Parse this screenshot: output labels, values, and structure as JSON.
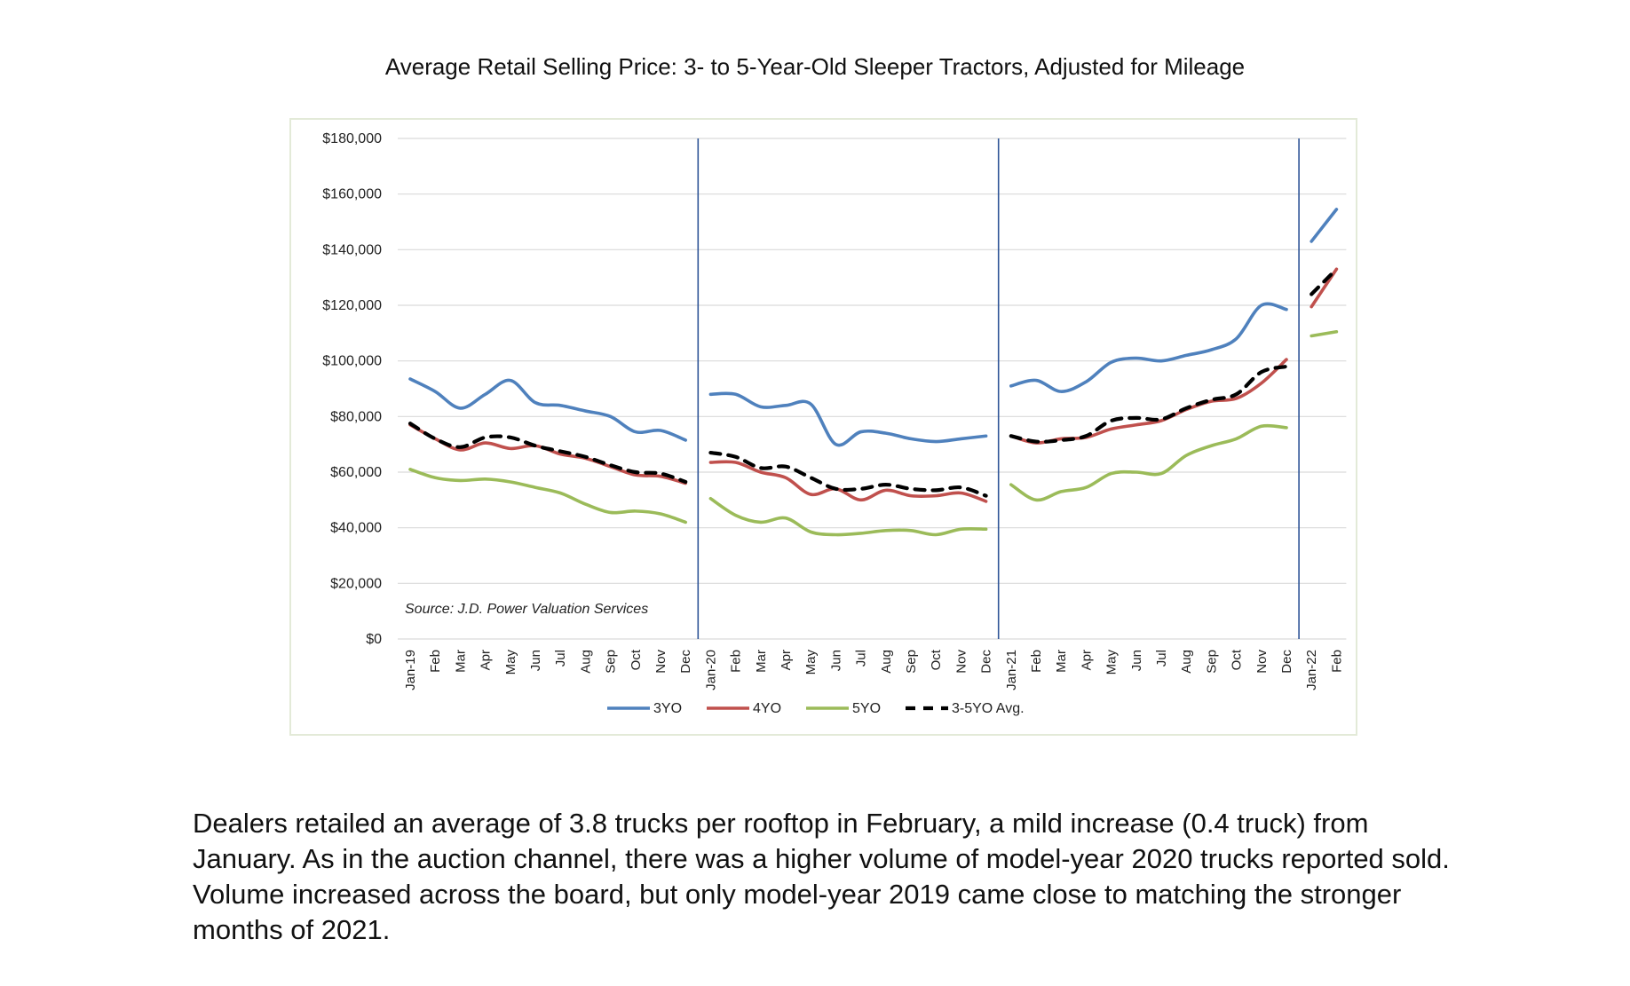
{
  "title": "Average Retail Selling Price: 3- to 5-Year-Old Sleeper Tractors, Adjusted for Mileage",
  "paragraph": "Dealers retailed an average of 3.8 trucks per rooftop in February, a mild increase (0.4 truck) from January. As in the auction channel, there was a higher volume of model-year 2020 trucks reported sold. Volume increased across the board, but only model-year 2019 came close to matching the stronger months of 2021.",
  "chart_data": {
    "type": "line",
    "title": "",
    "xlabel": "",
    "ylabel": "",
    "ylim": [
      0,
      180000
    ],
    "grid": true,
    "legend_position": "bottom",
    "source_note": "Source: J.D. Power Valuation Services",
    "y_ticks": [
      "$180,000",
      "$160,000",
      "$140,000",
      "$120,000",
      "$100,000",
      "$80,000",
      "$60,000",
      "$40,000",
      "$20,000",
      "$0"
    ],
    "categories": [
      "Jan-19",
      "Feb",
      "Mar",
      "Apr",
      "May",
      "Jun",
      "Jul",
      "Aug",
      "Sep",
      "Oct",
      "Nov",
      "Dec",
      "Jan-20",
      "Feb",
      "Mar",
      "Apr",
      "May",
      "Jun",
      "Jul",
      "Aug",
      "Sep",
      "Oct",
      "Nov",
      "Dec",
      "Jan-21",
      "Feb",
      "Mar",
      "Apr",
      "May",
      "Jun",
      "Jul",
      "Aug",
      "Sep",
      "Oct",
      "Nov",
      "Dec",
      "Jan-22",
      "Feb"
    ],
    "year_breaks_after": [
      "Dec",
      "Dec",
      "Dec"
    ],
    "series": [
      {
        "name": "3YO",
        "color": "#4f81bd",
        "dash": "solid",
        "values": [
          93500,
          89000,
          83000,
          88000,
          93000,
          85000,
          84000,
          82000,
          80000,
          74500,
          75000,
          71500,
          88000,
          88000,
          83500,
          84000,
          84500,
          70000,
          74500,
          74000,
          72000,
          71000,
          72000,
          73000,
          91000,
          93000,
          89000,
          92500,
          99500,
          101000,
          100000,
          102000,
          104000,
          108000,
          120000,
          118500,
          143000,
          154500
        ]
      },
      {
        "name": "4YO",
        "color": "#c0504d",
        "dash": "solid",
        "values": [
          77000,
          72000,
          68000,
          70500,
          68500,
          69500,
          66500,
          65000,
          62000,
          59000,
          58500,
          56000,
          63500,
          63500,
          60000,
          58000,
          52000,
          54000,
          50000,
          53500,
          51500,
          51500,
          52500,
          49500,
          73000,
          70500,
          72000,
          72500,
          75500,
          77000,
          78500,
          82500,
          85500,
          86500,
          92000,
          100500,
          119500,
          133000
        ]
      },
      {
        "name": "5YO",
        "color": "#9bbb59",
        "dash": "solid",
        "values": [
          61000,
          58000,
          57000,
          57500,
          56500,
          54500,
          52500,
          48500,
          45500,
          46000,
          45000,
          42000,
          50500,
          44500,
          42000,
          43500,
          38500,
          37500,
          38000,
          39000,
          39000,
          37500,
          39500,
          39500,
          55500,
          50000,
          53000,
          54500,
          59500,
          60000,
          59500,
          66000,
          69500,
          72000,
          76500,
          76000,
          109000,
          110500
        ]
      },
      {
        "name": "3-5YO Avg.",
        "color": "#000000",
        "dash": "dashed",
        "values": [
          77500,
          72000,
          69000,
          72500,
          72500,
          69500,
          67500,
          65500,
          62500,
          60000,
          59500,
          56500,
          67000,
          65500,
          61500,
          62000,
          58000,
          54000,
          54000,
          55500,
          54000,
          53500,
          54500,
          51500,
          73000,
          71000,
          71500,
          73000,
          78500,
          79500,
          79000,
          83000,
          86000,
          88000,
          96000,
          98000,
          124000,
          133000
        ]
      }
    ]
  }
}
